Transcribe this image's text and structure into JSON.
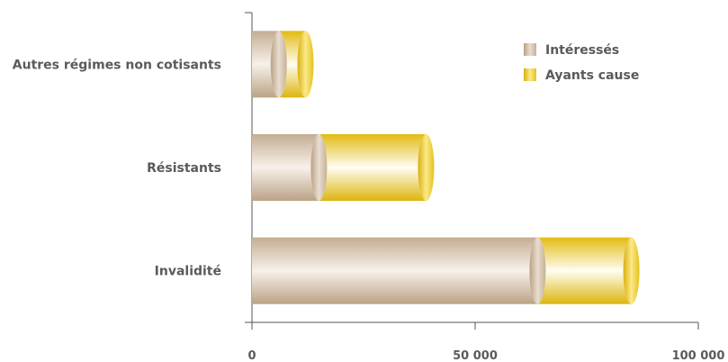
{
  "chart_data": {
    "type": "bar",
    "orientation": "horizontal",
    "stacked": true,
    "title": "",
    "xlabel": "",
    "ylabel": "",
    "categories": [
      "Autres régimes non cotisants",
      "Résistants",
      "Invalidité"
    ],
    "series": [
      {
        "name": "Intéressés",
        "values": [
          6000,
          15000,
          64000
        ],
        "color": "#cdb8a0"
      },
      {
        "name": "Ayants cause",
        "values": [
          6000,
          24000,
          21000
        ],
        "color": "#e8c41c"
      }
    ],
    "xlim": [
      0,
      100000
    ],
    "xticks": [
      {
        "value": 0,
        "label": "0"
      },
      {
        "value": 50000,
        "label": "50 000"
      },
      {
        "value": 100000,
        "label": "100 000"
      }
    ],
    "grid": false,
    "legend_position": "top-right"
  }
}
